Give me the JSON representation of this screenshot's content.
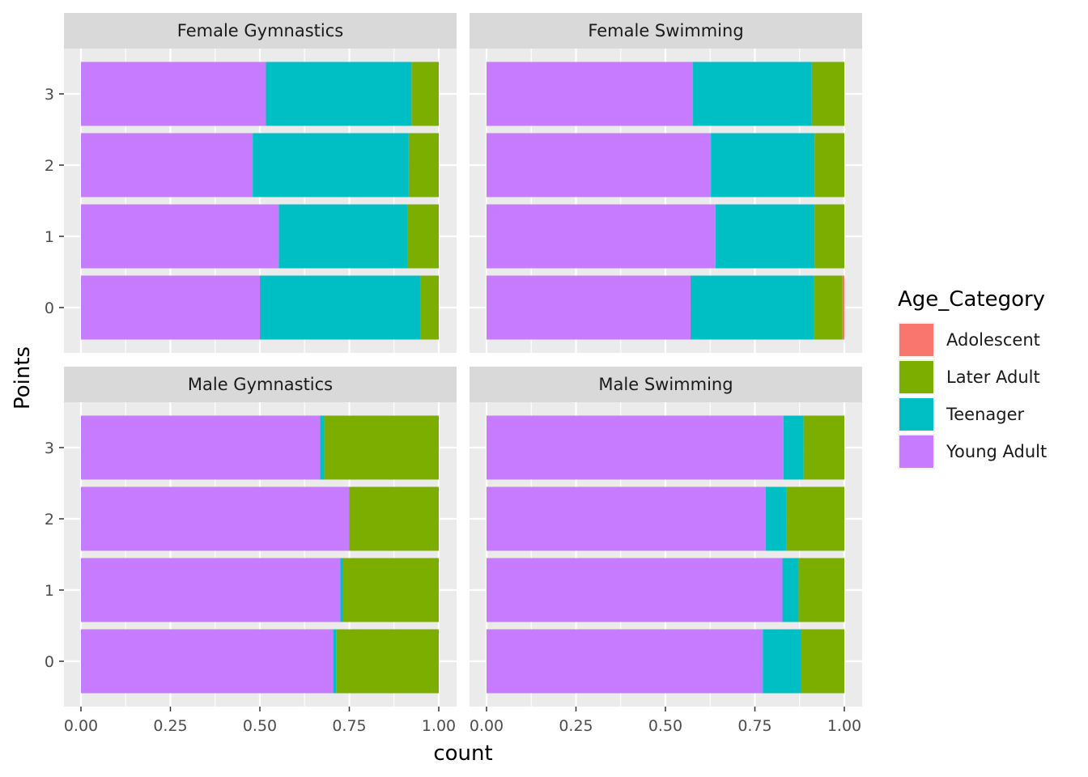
{
  "chart_data": {
    "type": "bar",
    "orientation": "horizontal",
    "position": "fill",
    "xlabel": "count",
    "ylabel": "Points",
    "xlim": [
      0,
      1
    ],
    "x_ticks": [
      "0.00",
      "0.25",
      "0.50",
      "0.75",
      "1.00"
    ],
    "x_tick_values": [
      0,
      0.25,
      0.5,
      0.75,
      1
    ],
    "categories": [
      "0",
      "1",
      "2",
      "3"
    ],
    "legend": {
      "title": "Age_Category",
      "placement": "right",
      "entries": [
        "Adolescent",
        "Later Adult",
        "Teenager",
        "Young Adult"
      ]
    },
    "colors": {
      "Adolescent": "#F8766D",
      "Later Adult": "#7CAE00",
      "Teenager": "#00BFC4",
      "Young Adult": "#C77CFF"
    },
    "stack_order": [
      "Young Adult",
      "Teenager",
      "Later Adult",
      "Adolescent"
    ],
    "grid": true,
    "panels": [
      {
        "title": "Female Gymnastics",
        "series": [
          {
            "name": "Young Adult",
            "values": [
              0.5,
              0.553,
              0.48,
              0.517
            ]
          },
          {
            "name": "Teenager",
            "values": [
              0.45,
              0.36,
              0.436,
              0.407
            ]
          },
          {
            "name": "Later Adult",
            "values": [
              0.05,
              0.087,
              0.084,
              0.076
            ]
          },
          {
            "name": "Adolescent",
            "values": [
              0,
              0,
              0,
              0
            ]
          }
        ]
      },
      {
        "title": "Female Swimming",
        "series": [
          {
            "name": "Young Adult",
            "values": [
              0.57,
              0.64,
              0.627,
              0.577
            ]
          },
          {
            "name": "Teenager",
            "values": [
              0.346,
              0.277,
              0.29,
              0.332
            ]
          },
          {
            "name": "Later Adult",
            "values": [
              0.079,
              0.083,
              0.083,
              0.091
            ]
          },
          {
            "name": "Adolescent",
            "values": [
              0.005,
              0,
              0,
              0
            ]
          }
        ]
      },
      {
        "title": "Male Gymnastics",
        "series": [
          {
            "name": "Young Adult",
            "values": [
              0.705,
              0.725,
              0.75,
              0.668
            ]
          },
          {
            "name": "Teenager",
            "values": [
              0.008,
              0.008,
              0,
              0.012
            ]
          },
          {
            "name": "Later Adult",
            "values": [
              0.287,
              0.267,
              0.25,
              0.32
            ]
          },
          {
            "name": "Adolescent",
            "values": [
              0,
              0,
              0,
              0
            ]
          }
        ]
      },
      {
        "title": "Male Swimming",
        "series": [
          {
            "name": "Young Adult",
            "values": [
              0.772,
              0.827,
              0.78,
              0.83
            ]
          },
          {
            "name": "Teenager",
            "values": [
              0.108,
              0.045,
              0.059,
              0.056
            ]
          },
          {
            "name": "Later Adult",
            "values": [
              0.12,
              0.128,
              0.161,
              0.114
            ]
          },
          {
            "name": "Adolescent",
            "values": [
              0,
              0,
              0,
              0
            ]
          }
        ]
      }
    ]
  }
}
